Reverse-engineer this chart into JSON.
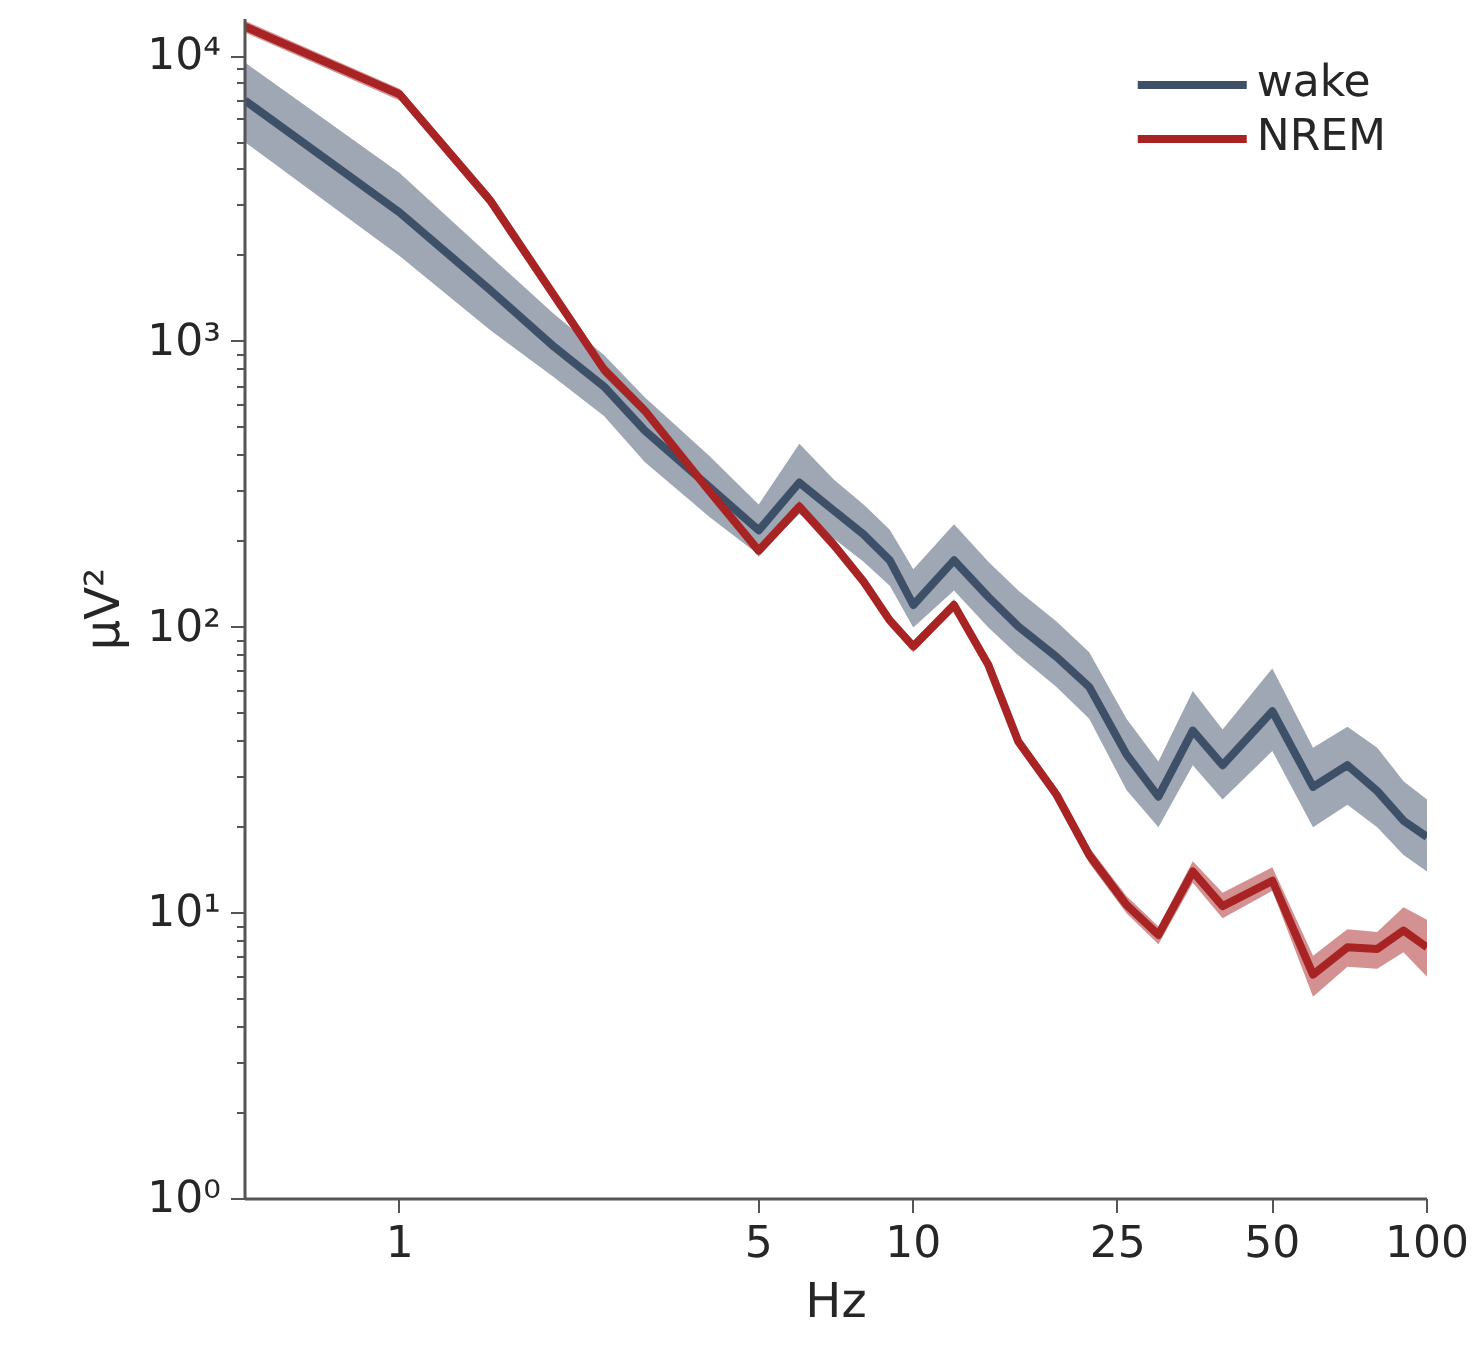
{
  "chart_data": {
    "type": "line",
    "xlabel": "Hz",
    "ylabel": "μV²",
    "log": "xy",
    "grid": false,
    "legend": "top right",
    "x": [
      0.5,
      1,
      1.5,
      2,
      2.5,
      3,
      4,
      5,
      6,
      7,
      8,
      9,
      10,
      12,
      14,
      16,
      19,
      22,
      26,
      30,
      35,
      40,
      50,
      60,
      70,
      80,
      90,
      100
    ],
    "xlim": [
      0.5,
      100
    ],
    "ylim": [
      1,
      13500
    ],
    "xticks": [
      1,
      5,
      10,
      25,
      50,
      100
    ],
    "yticks": [
      {
        "value": 1,
        "label": "10⁰"
      },
      {
        "value": 10,
        "label": "10¹"
      },
      {
        "value": 100,
        "label": "10²"
      },
      {
        "value": 1000,
        "label": "10³"
      },
      {
        "value": 10000,
        "label": "10⁴"
      }
    ],
    "series": [
      {
        "name": "wake",
        "color": "#3d5068",
        "values": [
          7000,
          2840,
          1520,
          960,
          698,
          490,
          312,
          219,
          322,
          257,
          212,
          172,
          120,
          172,
          128,
          101,
          79,
          62,
          36,
          25.6,
          43.6,
          33,
          51,
          27.7,
          33,
          26.8,
          21.1,
          18.5
        ],
        "upper": [
          9500,
          3900,
          2000,
          1250,
          900,
          640,
          400,
          270,
          440,
          330,
          270,
          220,
          160,
          230,
          170,
          135,
          105,
          82,
          48,
          34,
          60,
          44,
          72,
          38,
          45,
          38,
          29,
          25
        ],
        "lower": [
          5000,
          2000,
          1100,
          750,
          550,
          380,
          245,
          180,
          250,
          205,
          170,
          140,
          100,
          135,
          100,
          80,
          62,
          48,
          27,
          20,
          33,
          25,
          37,
          20,
          24,
          20,
          16,
          14
        ]
      },
      {
        "name": "NREM",
        "color": "#a82424",
        "values": [
          12700,
          7360,
          3130,
          1450,
          800,
          575,
          302,
          186,
          265,
          195,
          145,
          106,
          86,
          120,
          74,
          40,
          26,
          16,
          10.7,
          8.4,
          14,
          10.6,
          13,
          6.1,
          7.6,
          7.5,
          8.7,
          7.6
        ],
        "upper": [
          13300,
          7700,
          3300,
          1520,
          840,
          600,
          317,
          195,
          278,
          205,
          152,
          111,
          90,
          126,
          78,
          42,
          27.5,
          17,
          11.5,
          9,
          15.2,
          11.8,
          14.5,
          7.1,
          8.8,
          8.6,
          10.5,
          9.5
        ],
        "lower": [
          12100,
          7000,
          2980,
          1380,
          760,
          550,
          288,
          177,
          252,
          185,
          138,
          101,
          82,
          114,
          70,
          38,
          24.8,
          15,
          10,
          7.8,
          12.8,
          9.6,
          12,
          5.1,
          6.5,
          6.4,
          7.3,
          6
        ]
      }
    ]
  }
}
